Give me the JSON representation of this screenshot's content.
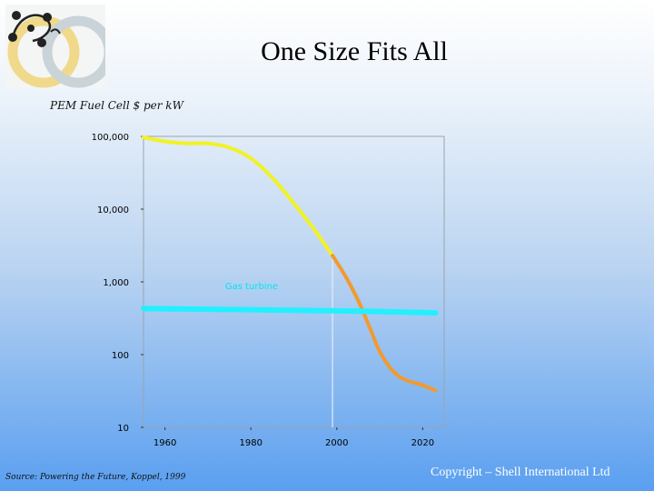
{
  "slide": {
    "title": "One Size Fits All",
    "subtitle": "PEM Fuel Cell $ per kW",
    "source": "Source: Powering the Future, Koppel, 1999",
    "copyright": "Copyright – Shell International Ltd"
  },
  "logo": {
    "icon": "shell-scenario-rings-logo"
  },
  "chart_data": {
    "type": "line",
    "title": "",
    "xlabel": "",
    "ylabel": "PEM Fuel Cell $ per kW",
    "yscale": "log",
    "ylim": [
      10,
      100000
    ],
    "xlim": [
      1955,
      2025
    ],
    "yticks": [
      {
        "value": 100000,
        "label": "100,000"
      },
      {
        "value": 10000,
        "label": "10,000"
      },
      {
        "value": 1000,
        "label": "1,000"
      },
      {
        "value": 100,
        "label": "100"
      },
      {
        "value": 10,
        "label": "10"
      }
    ],
    "xticks": [
      {
        "value": 1960,
        "label": "1960"
      },
      {
        "value": 1980,
        "label": "1980"
      },
      {
        "value": 2000,
        "label": "2000"
      },
      {
        "value": 2020,
        "label": "2020"
      }
    ],
    "series": [
      {
        "color": "#f2f223",
        "x": [
          1955,
          1960,
          1965,
          1970,
          1975,
          1980,
          1985,
          1990,
          1995,
          1999
        ],
        "y": [
          97000,
          85000,
          80000,
          80000,
          70000,
          50000,
          27000,
          12000,
          5000,
          2300
        ]
      },
      {
        "color": "#f29a2e",
        "x": [
          1999,
          2002,
          2005,
          2008,
          2010,
          2013,
          2016,
          2020,
          2023
        ],
        "y": [
          2300,
          1200,
          550,
          210,
          110,
          60,
          45,
          38,
          32
        ]
      },
      {
        "name": "Gas turbine",
        "color": "#22f0ff",
        "x": [
          1955,
          1970,
          1985,
          2000,
          2015,
          2023
        ],
        "y": [
          430,
          420,
          410,
          400,
          385,
          375
        ]
      }
    ],
    "annotations": [
      {
        "text": "Gas turbine",
        "x": 1974,
        "y": 800
      }
    ],
    "markers": [
      {
        "type": "vertical-line",
        "x": 1999,
        "from_y": 2300,
        "to_y": 10
      }
    ],
    "grid": false,
    "legend": "none"
  }
}
